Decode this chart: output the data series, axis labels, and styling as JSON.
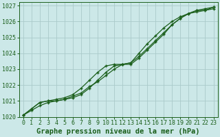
{
  "xlabel": "Graphe pression niveau de la mer (hPa)",
  "ylabel": "",
  "x": [
    0,
    1,
    2,
    3,
    4,
    5,
    6,
    7,
    8,
    9,
    10,
    11,
    12,
    13,
    14,
    15,
    16,
    17,
    18,
    19,
    20,
    21,
    22,
    23
  ],
  "line1": [
    1020.1,
    1020.4,
    1020.7,
    1020.9,
    1021.0,
    1021.1,
    1021.3,
    1021.5,
    1021.9,
    1022.2,
    1022.6,
    1023.0,
    1023.3,
    1023.4,
    1023.8,
    1024.3,
    1024.8,
    1025.3,
    1025.8,
    1026.2,
    1026.5,
    1026.6,
    1026.7,
    1026.8
  ],
  "line2": [
    1020.1,
    1020.5,
    1020.9,
    1021.0,
    1021.0,
    1021.1,
    1021.2,
    1021.4,
    1021.8,
    1022.3,
    1022.8,
    1023.2,
    1023.3,
    1023.3,
    1023.7,
    1024.2,
    1024.7,
    1025.2,
    1025.8,
    1026.2,
    1026.5,
    1026.7,
    1026.7,
    1026.9
  ],
  "line3": [
    1020.1,
    1020.5,
    1020.9,
    1021.0,
    1021.1,
    1021.2,
    1021.4,
    1021.8,
    1022.3,
    1022.8,
    1023.2,
    1023.3,
    1023.3,
    1023.4,
    1024.0,
    1024.6,
    1025.1,
    1025.6,
    1026.0,
    1026.3,
    1026.5,
    1026.7,
    1026.8,
    1026.9
  ],
  "ylim": [
    1020.0,
    1027.2
  ],
  "xlim": [
    -0.5,
    23.5
  ],
  "yticks": [
    1020,
    1021,
    1022,
    1023,
    1024,
    1025,
    1026,
    1027
  ],
  "xticks": [
    0,
    1,
    2,
    3,
    4,
    5,
    6,
    7,
    8,
    9,
    10,
    11,
    12,
    13,
    14,
    15,
    16,
    17,
    18,
    19,
    20,
    21,
    22,
    23
  ],
  "line_color": "#1a5e1a",
  "marker": "+",
  "marker_size": 3.5,
  "line_width": 0.9,
  "bg_color": "#cce8e8",
  "grid_color": "#aacaca",
  "xlabel_color": "#1a5e1a",
  "tick_color": "#1a5e1a",
  "xlabel_fontsize": 7.5,
  "tick_fontsize": 6.0
}
